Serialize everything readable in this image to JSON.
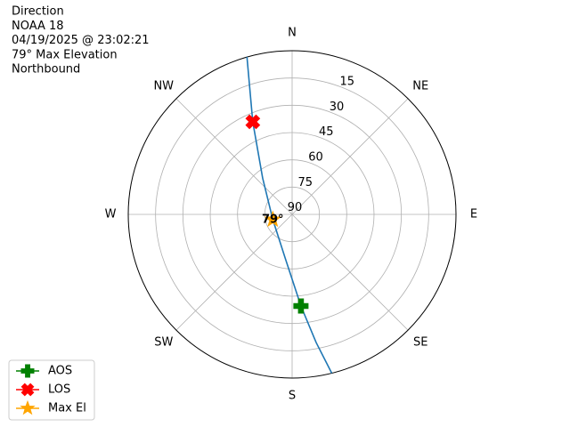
{
  "chart_data": {
    "type": "polar",
    "title_lines": [
      "Direction",
      "NOAA 18",
      "04/19/2025 @ 23:02:21",
      "79° Max Elevation",
      "Northbound"
    ],
    "rlim": [
      90,
      0
    ],
    "rticks": [
      15,
      30,
      45,
      60,
      75,
      90
    ],
    "thetaticks": [
      {
        "value": 0,
        "label": "N"
      },
      {
        "value": 45,
        "label": "NE"
      },
      {
        "value": 90,
        "label": "E"
      },
      {
        "value": 135,
        "label": "SE"
      },
      {
        "value": 180,
        "label": "S"
      },
      {
        "value": 225,
        "label": "SW"
      },
      {
        "value": 270,
        "label": "W"
      },
      {
        "value": 315,
        "label": "NW"
      }
    ],
    "grid": true,
    "legend": "lower left",
    "track": {
      "color": "#1f77b4",
      "theta": [
        344,
        337,
        321,
        255,
        189,
        174.5,
        169.4,
        166
      ],
      "r": [
        0,
        34.7,
        64.3,
        79,
        65.7,
        39.4,
        18.3,
        0
      ]
    },
    "series": [
      {
        "name": "AOS",
        "color": "#008000",
        "marker": "plus",
        "theta": [
          174.5
        ],
        "r": [
          39.4
        ]
      },
      {
        "name": "LOS",
        "color": "#ff0000",
        "marker": "x",
        "theta": [
          337
        ],
        "r": [
          34.7
        ]
      },
      {
        "name": "Max El",
        "color": "#ffa500",
        "marker": "star",
        "theta": [
          255
        ],
        "r": [
          79
        ]
      }
    ],
    "annotation": {
      "text": "79°",
      "theta": 255,
      "r": 79
    }
  }
}
